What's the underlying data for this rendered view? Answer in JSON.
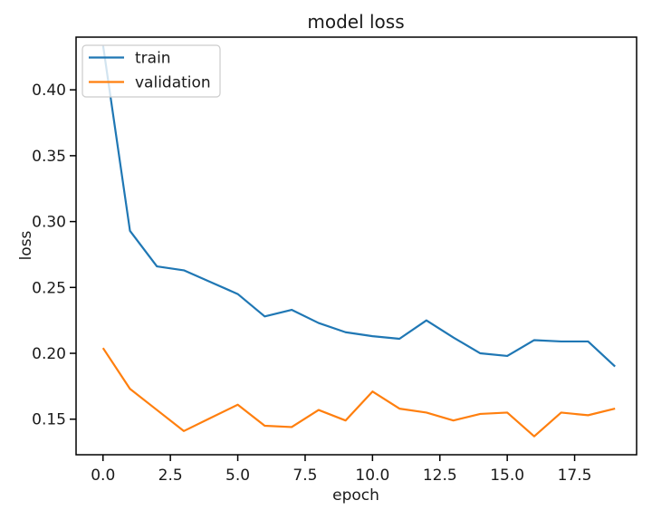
{
  "chart_data": {
    "type": "line",
    "title": "model loss",
    "xlabel": "epoch",
    "ylabel": "loss",
    "x": [
      0,
      1,
      2,
      3,
      4,
      5,
      6,
      7,
      8,
      9,
      10,
      11,
      12,
      13,
      14,
      15,
      16,
      17,
      18,
      19
    ],
    "series": [
      {
        "name": "train",
        "color": "#1f77b4",
        "values": [
          0.434,
          0.293,
          0.266,
          0.263,
          0.254,
          0.245,
          0.228,
          0.233,
          0.223,
          0.216,
          0.213,
          0.211,
          0.225,
          0.212,
          0.2,
          0.198,
          0.21,
          0.209,
          0.209,
          0.19
        ]
      },
      {
        "name": "validation",
        "color": "#ff7f0e",
        "values": [
          0.204,
          0.173,
          0.157,
          0.141,
          0.151,
          0.161,
          0.145,
          0.144,
          0.157,
          0.149,
          0.171,
          0.158,
          0.155,
          0.149,
          0.154,
          0.155,
          0.137,
          0.155,
          0.153,
          0.158
        ]
      }
    ],
    "xticks": {
      "values": [
        0,
        2.5,
        5,
        7.5,
        10,
        12.5,
        15,
        17.5
      ],
      "labels": [
        "0.0",
        "2.5",
        "5.0",
        "7.5",
        "10.0",
        "12.5",
        "15.0",
        "17.5"
      ]
    },
    "yticks": {
      "values": [
        0.15,
        0.2,
        0.25,
        0.3,
        0.35,
        0.4
      ],
      "labels": [
        "0.15",
        "0.20",
        "0.25",
        "0.30",
        "0.35",
        "0.40"
      ]
    },
    "xlim": [
      -1.0,
      19.8
    ],
    "ylim": [
      0.123,
      0.44
    ],
    "grid": false,
    "legend_position": "upper left",
    "legend_entries": [
      "train",
      "validation"
    ],
    "colors": {
      "background": "#ffffff",
      "spine": "#000000",
      "text": "#1a1a1a",
      "legend_border": "#cccccc"
    }
  }
}
